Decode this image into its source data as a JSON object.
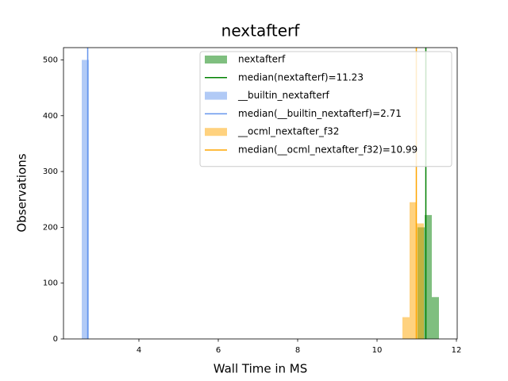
{
  "chart_data": {
    "type": "histogram",
    "title": "nextafterf",
    "x_label": "Wall Time in MS",
    "y_label": "Observations",
    "xlim": [
      2.1,
      12.02
    ],
    "ylim": [
      0,
      522
    ],
    "xticks": [
      4,
      6,
      8,
      10,
      12
    ],
    "yticks": [
      0,
      100,
      200,
      300,
      400,
      500
    ],
    "legend": "upper right",
    "series": [
      {
        "name": "nextafterf",
        "color": "#008000",
        "alpha": 0.5,
        "bins": [
          11.02,
          11.2,
          11.38,
          11.56
        ],
        "counts": [
          200,
          222,
          75
        ],
        "median": {
          "value": 11.23,
          "label": "median(nextafterf)=11.23",
          "color": "#008000"
        }
      },
      {
        "name": "__builtin_nextafterf",
        "color": "#6495ed",
        "alpha": 0.5,
        "bins": [
          2.56,
          2.74
        ],
        "counts": [
          500
        ],
        "median": {
          "value": 2.71,
          "label": "median(__builtin_nextafterf)=2.71",
          "color": "#6495ed"
        }
      },
      {
        "name": "__ocml_nextafter_f32",
        "color": "#ffa500",
        "alpha": 0.5,
        "bins": [
          10.64,
          10.82,
          11.0,
          11.18
        ],
        "counts": [
          39,
          245,
          207
        ],
        "median": {
          "value": 10.99,
          "label": "median(__ocml_nextafter_f32)=10.99",
          "color": "#ffa500"
        }
      }
    ]
  }
}
